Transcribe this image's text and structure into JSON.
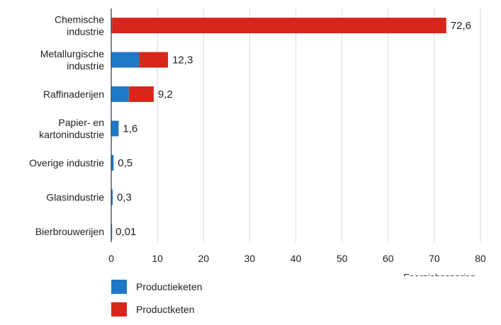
{
  "chart_data": {
    "type": "bar",
    "orientation": "horizontal",
    "stacked": true,
    "categories": [
      [
        "Chemische",
        "industrie"
      ],
      [
        "Metallurgische",
        "industrie"
      ],
      [
        "Raffinaderijen"
      ],
      [
        "Papier- en",
        "kartonindustrie"
      ],
      [
        "Overige industrie"
      ],
      [
        "Glasindustrie"
      ],
      [
        "Bierbrouwerijen"
      ]
    ],
    "series": [
      {
        "name": "Productieketen",
        "color": "#1f77c8",
        "values": [
          0.2,
          6.0,
          3.8,
          1.6,
          0.5,
          0.3,
          0.01
        ]
      },
      {
        "name": "Productketen",
        "color": "#d9261c",
        "values": [
          72.4,
          6.3,
          5.4,
          0,
          0,
          0,
          0
        ]
      }
    ],
    "totals_labels": [
      "72,6",
      "12,3",
      "9,2",
      "1,6",
      "0,5",
      "0,3",
      "0,01"
    ],
    "xticks": [
      "0",
      "10",
      "20",
      "30",
      "40",
      "50",
      "60",
      "70",
      "80"
    ],
    "xlim": [
      0,
      80
    ],
    "xlabel": "Energiebesparing →",
    "grid": "vertical",
    "legend_position": "bottom-left"
  }
}
